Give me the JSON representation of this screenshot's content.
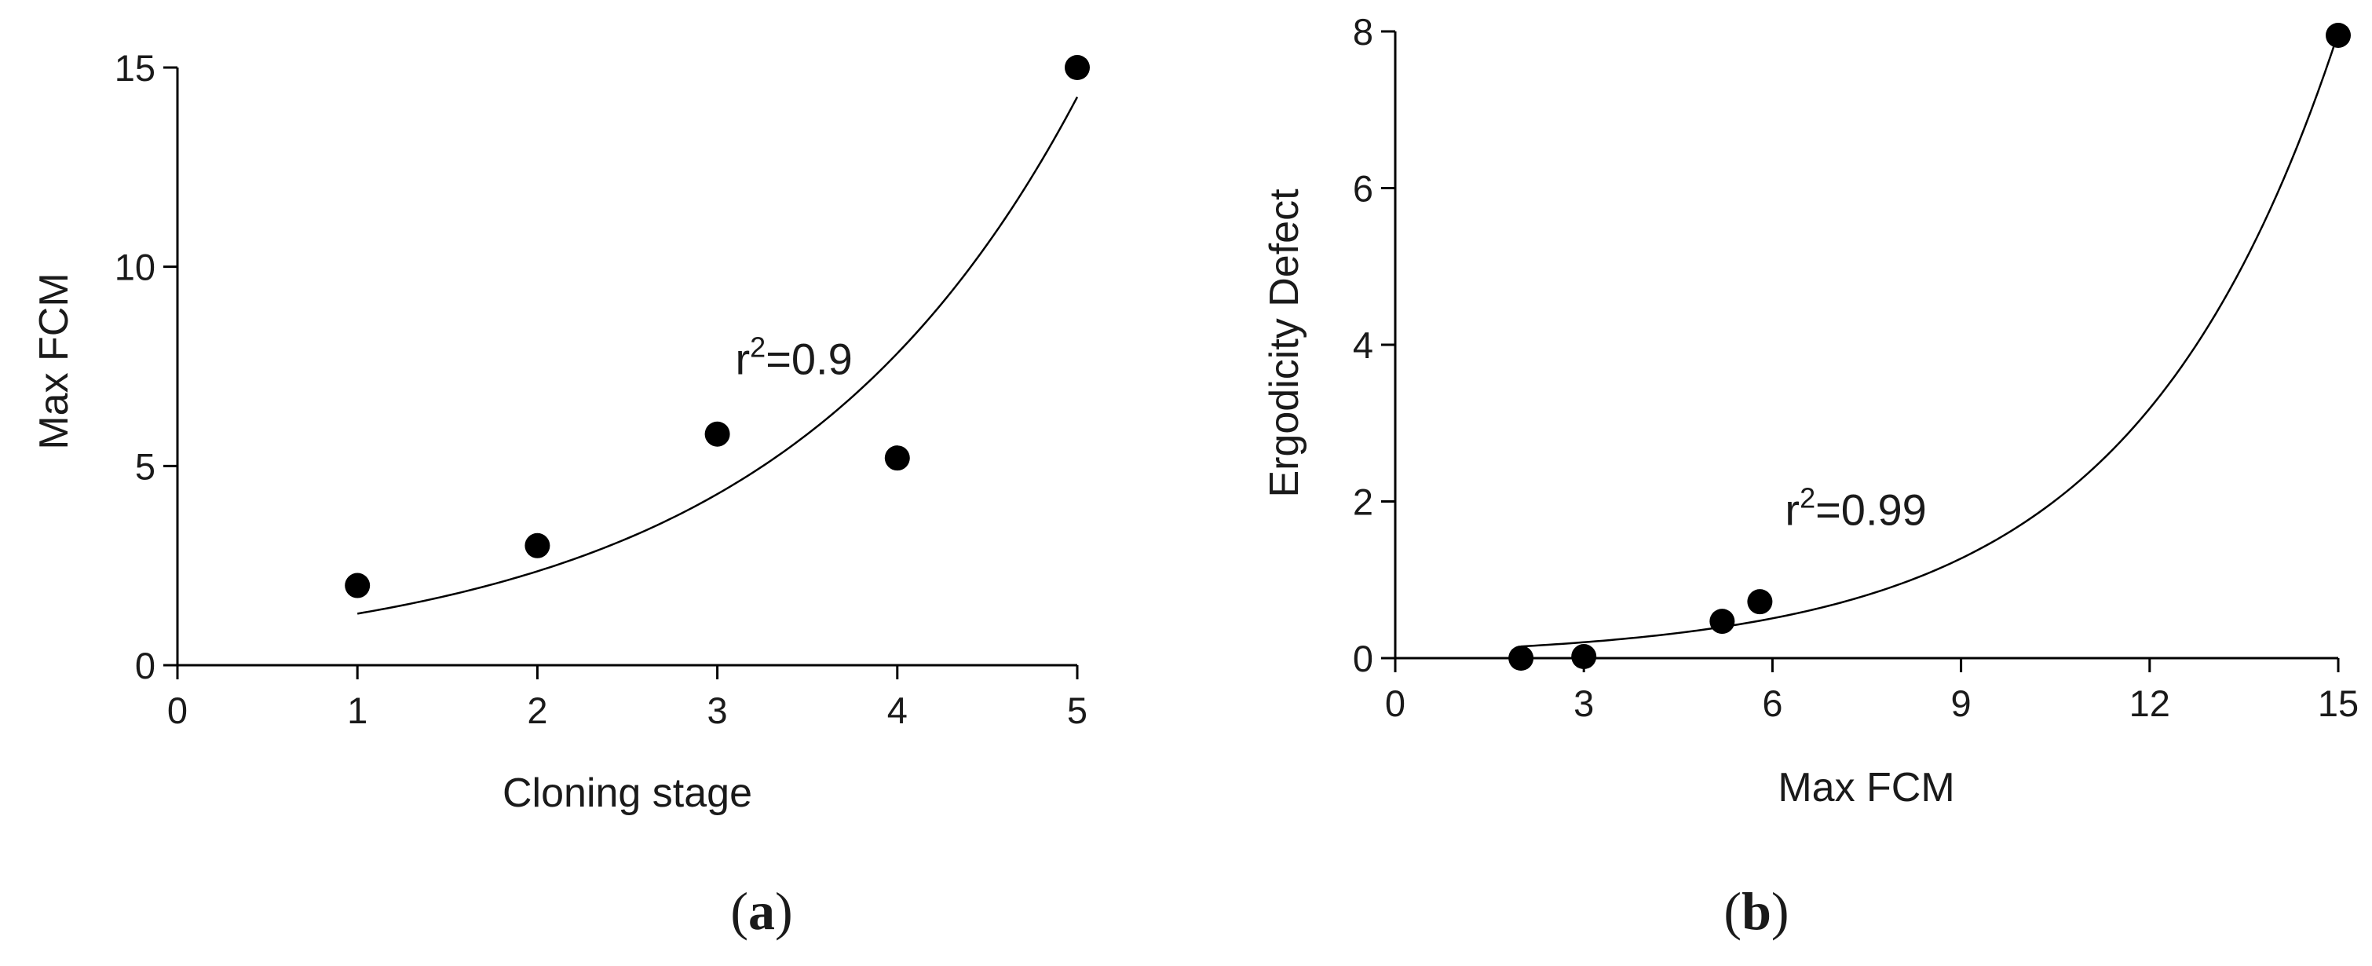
{
  "chart_data": [
    {
      "type": "scatter",
      "panel_label": "a",
      "xlabel": "Cloning stage",
      "ylabel": "Max FCM",
      "xlim": [
        0,
        5
      ],
      "ylim": [
        0,
        15
      ],
      "xticks": [
        0,
        1,
        2,
        3,
        4,
        5
      ],
      "yticks": [
        0,
        5,
        10,
        15
      ],
      "xtick_labels": [
        "0",
        "1",
        "2",
        "3",
        "4",
        "5"
      ],
      "ytick_labels": [
        "0",
        "5",
        "10",
        "15"
      ],
      "points": [
        {
          "x": 1,
          "y": 2.0
        },
        {
          "x": 2,
          "y": 3.0
        },
        {
          "x": 3,
          "y": 5.8
        },
        {
          "x": 4,
          "y": 5.2
        },
        {
          "x": 5,
          "y": 15.0
        }
      ],
      "fit": {
        "type": "exponential",
        "a": 0.71,
        "b": 0.6,
        "x_range": [
          1,
          5
        ]
      },
      "annotation": {
        "base": "r",
        "sup": "2",
        "text": "=0.9",
        "x": 3.1,
        "y": 7.3
      },
      "grid": false
    },
    {
      "type": "scatter",
      "panel_label": "b",
      "xlabel": "Max FCM",
      "ylabel": "Ergodicity Defect",
      "xlim": [
        0,
        15
      ],
      "ylim": [
        0,
        8
      ],
      "xticks": [
        0,
        3,
        6,
        9,
        12,
        15
      ],
      "yticks": [
        0,
        2,
        4,
        6,
        8
      ],
      "xtick_labels": [
        "0",
        "3",
        "6",
        "9",
        "12",
        "15"
      ],
      "ytick_labels": [
        "0",
        "2",
        "4",
        "6",
        "8"
      ],
      "points": [
        {
          "x": 2.0,
          "y": 0.0
        },
        {
          "x": 3.0,
          "y": 0.02
        },
        {
          "x": 5.2,
          "y": 0.47
        },
        {
          "x": 5.8,
          "y": 0.72
        },
        {
          "x": 15.0,
          "y": 7.95
        }
      ],
      "fit": {
        "type": "exponential",
        "a": 0.081,
        "b": 0.306,
        "x_range": [
          2,
          15
        ]
      },
      "annotation": {
        "base": "r",
        "sup": "2",
        "text": "=0.99",
        "x": 6.2,
        "y": 1.7
      },
      "grid": false
    }
  ]
}
